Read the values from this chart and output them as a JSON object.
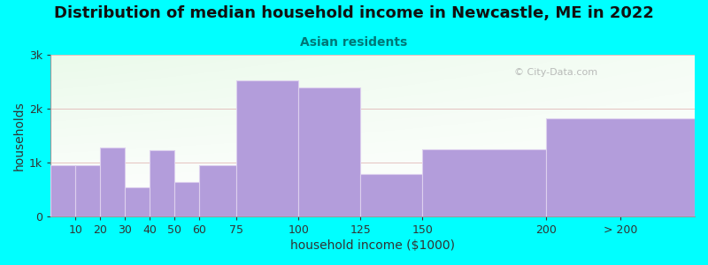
{
  "title": "Distribution of median household income in Newcastle, ME in 2022",
  "subtitle": "Asian residents",
  "xlabel": "household income ($1000)",
  "ylabel": "households",
  "background_color": "#00FFFF",
  "bar_color": "#b39ddb",
  "bar_edge_color": "#ddd0ee",
  "ytick_labels": [
    "0",
    "1k",
    "2k",
    "3k"
  ],
  "ytick_values": [
    0,
    1000,
    2000,
    3000
  ],
  "ylim": [
    0,
    3000
  ],
  "watermark": "© City-Data.com",
  "title_fontsize": 13,
  "subtitle_fontsize": 10,
  "axis_label_fontsize": 10,
  "tick_fontsize": 9,
  "bar_lefts": [
    0,
    10,
    20,
    30,
    40,
    50,
    60,
    75,
    100,
    125,
    150,
    200
  ],
  "bar_widths": [
    10,
    10,
    10,
    10,
    10,
    10,
    15,
    25,
    25,
    25,
    50,
    60
  ],
  "bar_values": [
    950,
    950,
    1280,
    540,
    1220,
    630,
    950,
    2520,
    2400,
    790,
    1250,
    1820
  ],
  "xtick_positions": [
    10,
    20,
    30,
    40,
    50,
    60,
    75,
    100,
    125,
    150,
    200,
    230
  ],
  "xtick_labels": [
    "10",
    "20",
    "30",
    "40",
    "50",
    "60",
    "75",
    "100",
    "125",
    "150",
    "200",
    "> 200"
  ],
  "xlim": [
    0,
    260
  ]
}
